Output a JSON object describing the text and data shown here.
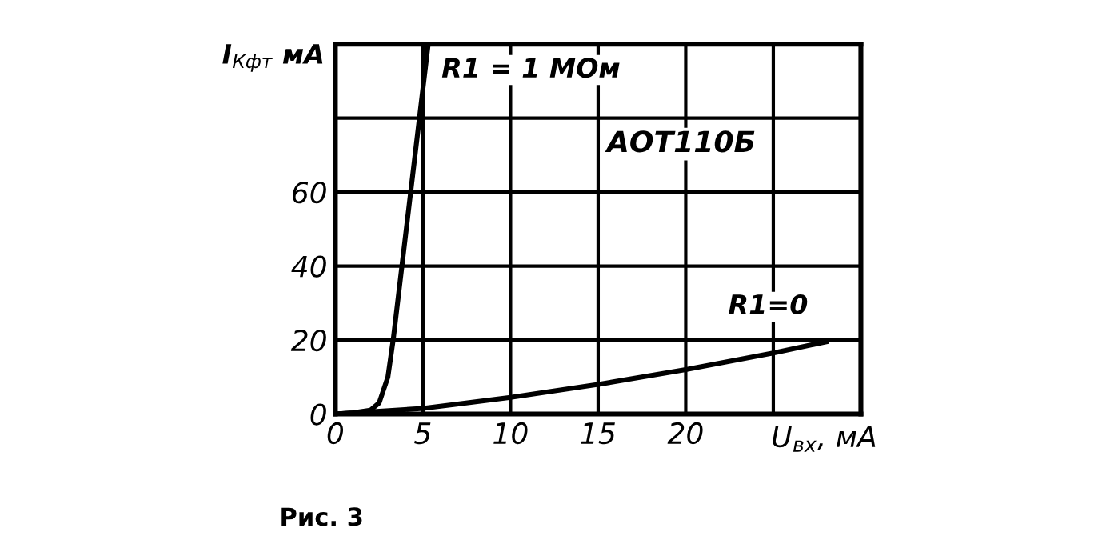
{
  "chart_data": {
    "type": "line",
    "xlabel": "U$_{вх}$, мА",
    "ylabel": "I$_{Кфт}$ мА",
    "annotations": [
      "АОТ110Б",
      "Рис. 3"
    ],
    "series": [
      {
        "name": "R1 = 1 МОм",
        "color": "#000000",
        "x": [
          0,
          1,
          2,
          2.5,
          3,
          3.3,
          3.8,
          4.3,
          4.8,
          5.3
        ],
        "values": [
          0,
          0.3,
          1,
          3,
          10,
          20,
          40,
          60,
          80,
          100
        ]
      },
      {
        "name": "R1=0",
        "color": "#000000",
        "x": [
          0,
          5,
          10,
          15,
          20,
          25,
          28
        ],
        "values": [
          0,
          1.5,
          4.5,
          8,
          12,
          16.5,
          19.5
        ]
      }
    ],
    "xlim": [
      0,
      30
    ],
    "ylim": [
      0,
      100
    ],
    "xticks": [
      0,
      5,
      10,
      15,
      20,
      {
        "value": 25,
        "label": null
      }
    ],
    "yticks": [
      0,
      20,
      40,
      60,
      {
        "value": 80,
        "label": null
      },
      {
        "value": 100,
        "label": null
      }
    ],
    "grid": true,
    "marker": "none",
    "line_style": "solid"
  }
}
